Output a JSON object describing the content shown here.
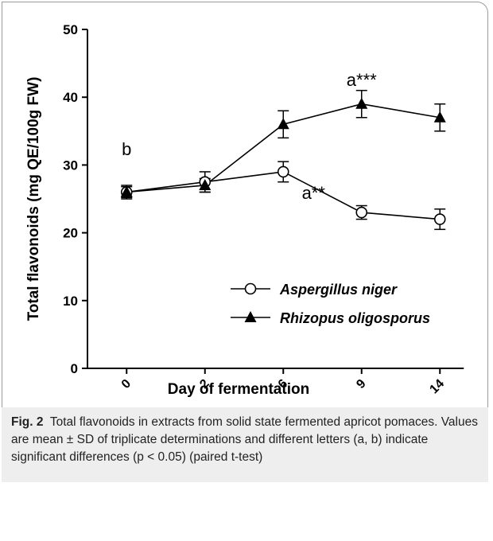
{
  "chart_data": {
    "type": "line",
    "xlabel": "Day of fermentation",
    "ylabel": "Total flavonoids (mg QE/100g FW)",
    "categories": [
      "0",
      "2",
      "6",
      "9",
      "14"
    ],
    "series": [
      {
        "name": "Aspergillus niger",
        "color": "#000000",
        "marker": "open-circle",
        "values": [
          26,
          27.5,
          29,
          23,
          22
        ],
        "errors": [
          0.8,
          1.5,
          1.5,
          1,
          1.5
        ]
      },
      {
        "name": "Rhizopus oligosporus",
        "color": "#000000",
        "marker": "filled-triangle",
        "values": [
          26,
          27,
          36,
          39,
          37
        ],
        "errors": [
          1,
          1,
          2,
          2,
          2
        ]
      }
    ],
    "annotations": [
      "b",
      "a**",
      "a***"
    ],
    "ylim": [
      0,
      50
    ],
    "yticks": [
      0,
      10,
      20,
      30,
      40,
      50
    ],
    "grid": false,
    "legend": "lower right",
    "caption_label": "Fig. 2",
    "caption": "Total flavonoids in extracts from solid state fermented apricot pomaces. Values are mean ± SD of triplicate determinations and different letters (a, b) indicate significant differences (p < 0.05) (paired t-test)"
  }
}
